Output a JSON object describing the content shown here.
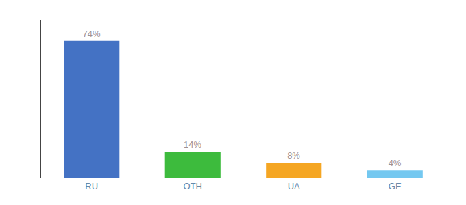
{
  "chart_data": {
    "type": "bar",
    "categories": [
      "RU",
      "OTH",
      "UA",
      "GE"
    ],
    "values": [
      74,
      14,
      8,
      4
    ],
    "value_labels": [
      "74%",
      "14%",
      "8%",
      "4%"
    ],
    "colors": [
      "#4472c4",
      "#3dbb3d",
      "#f5a623",
      "#74c8f0"
    ],
    "ylim": [
      0,
      85
    ],
    "yticks": [],
    "data_labels": true,
    "tick_labels": "x",
    "grid": false
  }
}
